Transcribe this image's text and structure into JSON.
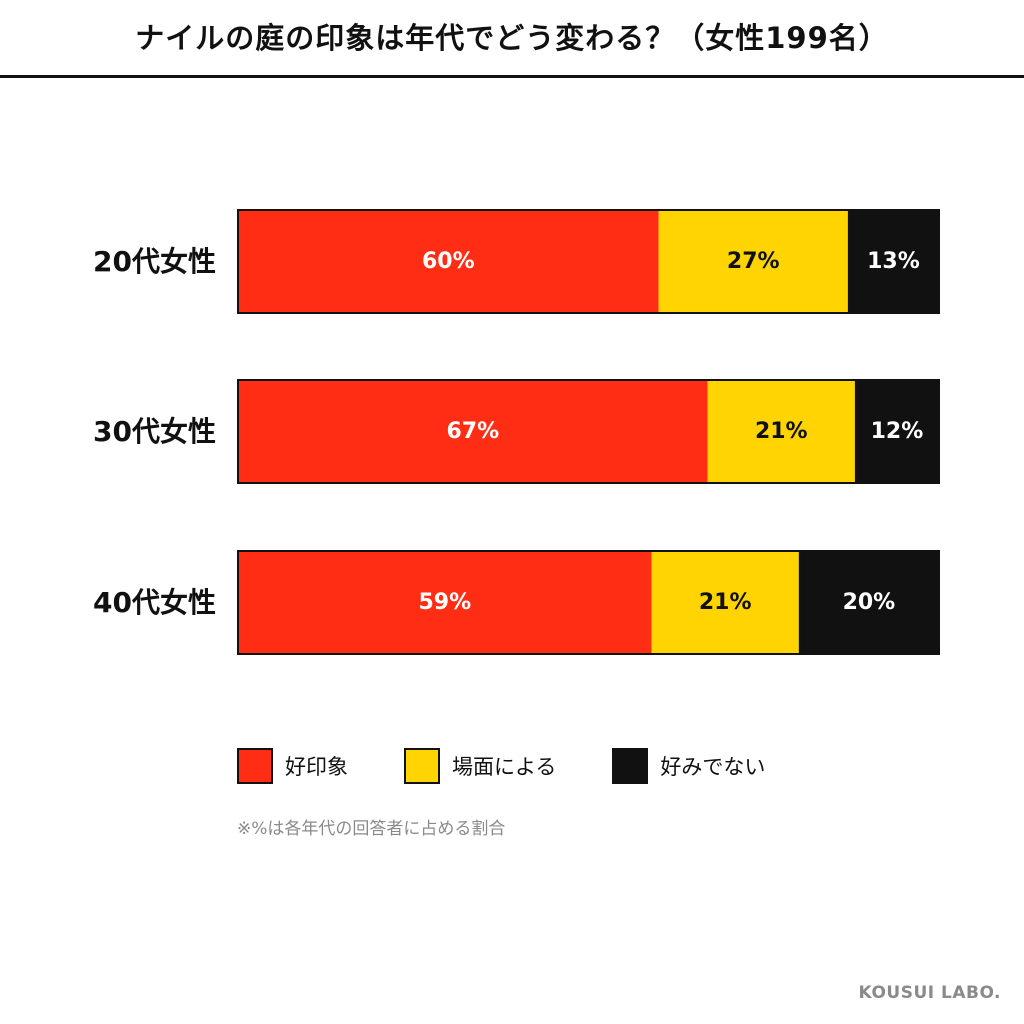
{
  "header": {
    "title": "ナイルの庭の印象は年代でどう変わる？（女性199名）"
  },
  "chart_data": {
    "type": "bar",
    "orientation": "horizontal",
    "stacked": true,
    "title": "ナイルの庭の印象は年代でどう変わる？（女性199名）",
    "categories": [
      "20代女性",
      "30代女性",
      "40代女性"
    ],
    "series": [
      {
        "name": "好印象",
        "color": "#fe2d14",
        "label_color": "#ffffff",
        "values": [
          60,
          67,
          59
        ]
      },
      {
        "name": "場面による",
        "color": "#ffd400",
        "label_color": "#111111",
        "values": [
          27,
          21,
          21
        ]
      },
      {
        "name": "好みでない",
        "color": "#111111",
        "label_color": "#ffffff",
        "values": [
          13,
          12,
          20
        ]
      }
    ],
    "value_suffix": "%",
    "xlim": [
      0,
      100
    ],
    "grid": false,
    "legend_position": "bottom"
  },
  "legend": {
    "items": [
      {
        "label": "好印象",
        "color": "#fe2d14"
      },
      {
        "label": "場面による",
        "color": "#ffd400"
      },
      {
        "label": "好みでない",
        "color": "#111111"
      }
    ]
  },
  "note": "※%は各年代の回答者に占める割合",
  "brand": "KOUSUI LABO."
}
